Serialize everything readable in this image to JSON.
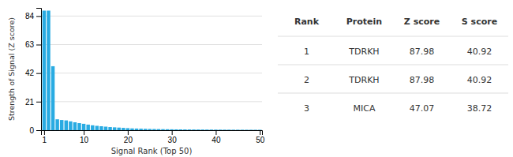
{
  "chart_data": [
    {
      "type": "bar",
      "xlabel": "Signal Rank (Top 50)",
      "ylabel": "Strength of Signal (Z score)",
      "x": [
        1,
        2,
        3,
        4,
        5,
        6,
        7,
        8,
        9,
        10,
        11,
        12,
        13,
        14,
        15,
        16,
        17,
        18,
        19,
        20,
        21,
        22,
        23,
        24,
        25,
        26,
        27,
        28,
        29,
        30,
        31,
        32,
        33,
        34,
        35,
        36,
        37,
        38,
        39,
        40,
        41,
        42,
        43,
        44,
        45,
        46,
        47,
        48,
        49,
        50
      ],
      "values": [
        87.98,
        87.98,
        47.07,
        8.0,
        7.5,
        7.2,
        6.5,
        5.8,
        5.2,
        4.7,
        4.1,
        3.6,
        3.2,
        2.9,
        2.6,
        2.3,
        2.1,
        1.9,
        1.7,
        1.5,
        1.3,
        1.2,
        1.1,
        1.0,
        0.9,
        0.85,
        0.8,
        0.75,
        0.7,
        0.65,
        0.6,
        0.58,
        0.55,
        0.52,
        0.5,
        0.48,
        0.46,
        0.44,
        0.42,
        0.4,
        0.38,
        0.36,
        0.35,
        0.33,
        0.32,
        0.31,
        0.3,
        0.29,
        0.28,
        0.27
      ],
      "color": "#29abe2",
      "xlim": [
        0.3,
        50.5
      ],
      "ylim": [
        0,
        90
      ],
      "xticks": [
        1,
        10,
        20,
        30,
        40,
        50
      ],
      "yticks": [
        0,
        21,
        42,
        63,
        84
      ],
      "grid": true
    },
    {
      "type": "table",
      "columns": [
        "Rank",
        "Protein",
        "Z score",
        "S score"
      ],
      "rows": [
        [
          1,
          "TDRKH",
          87.98,
          40.92
        ],
        [
          2,
          "TDRKH",
          87.98,
          40.92
        ],
        [
          3,
          "MICA",
          47.07,
          38.72
        ]
      ]
    }
  ]
}
